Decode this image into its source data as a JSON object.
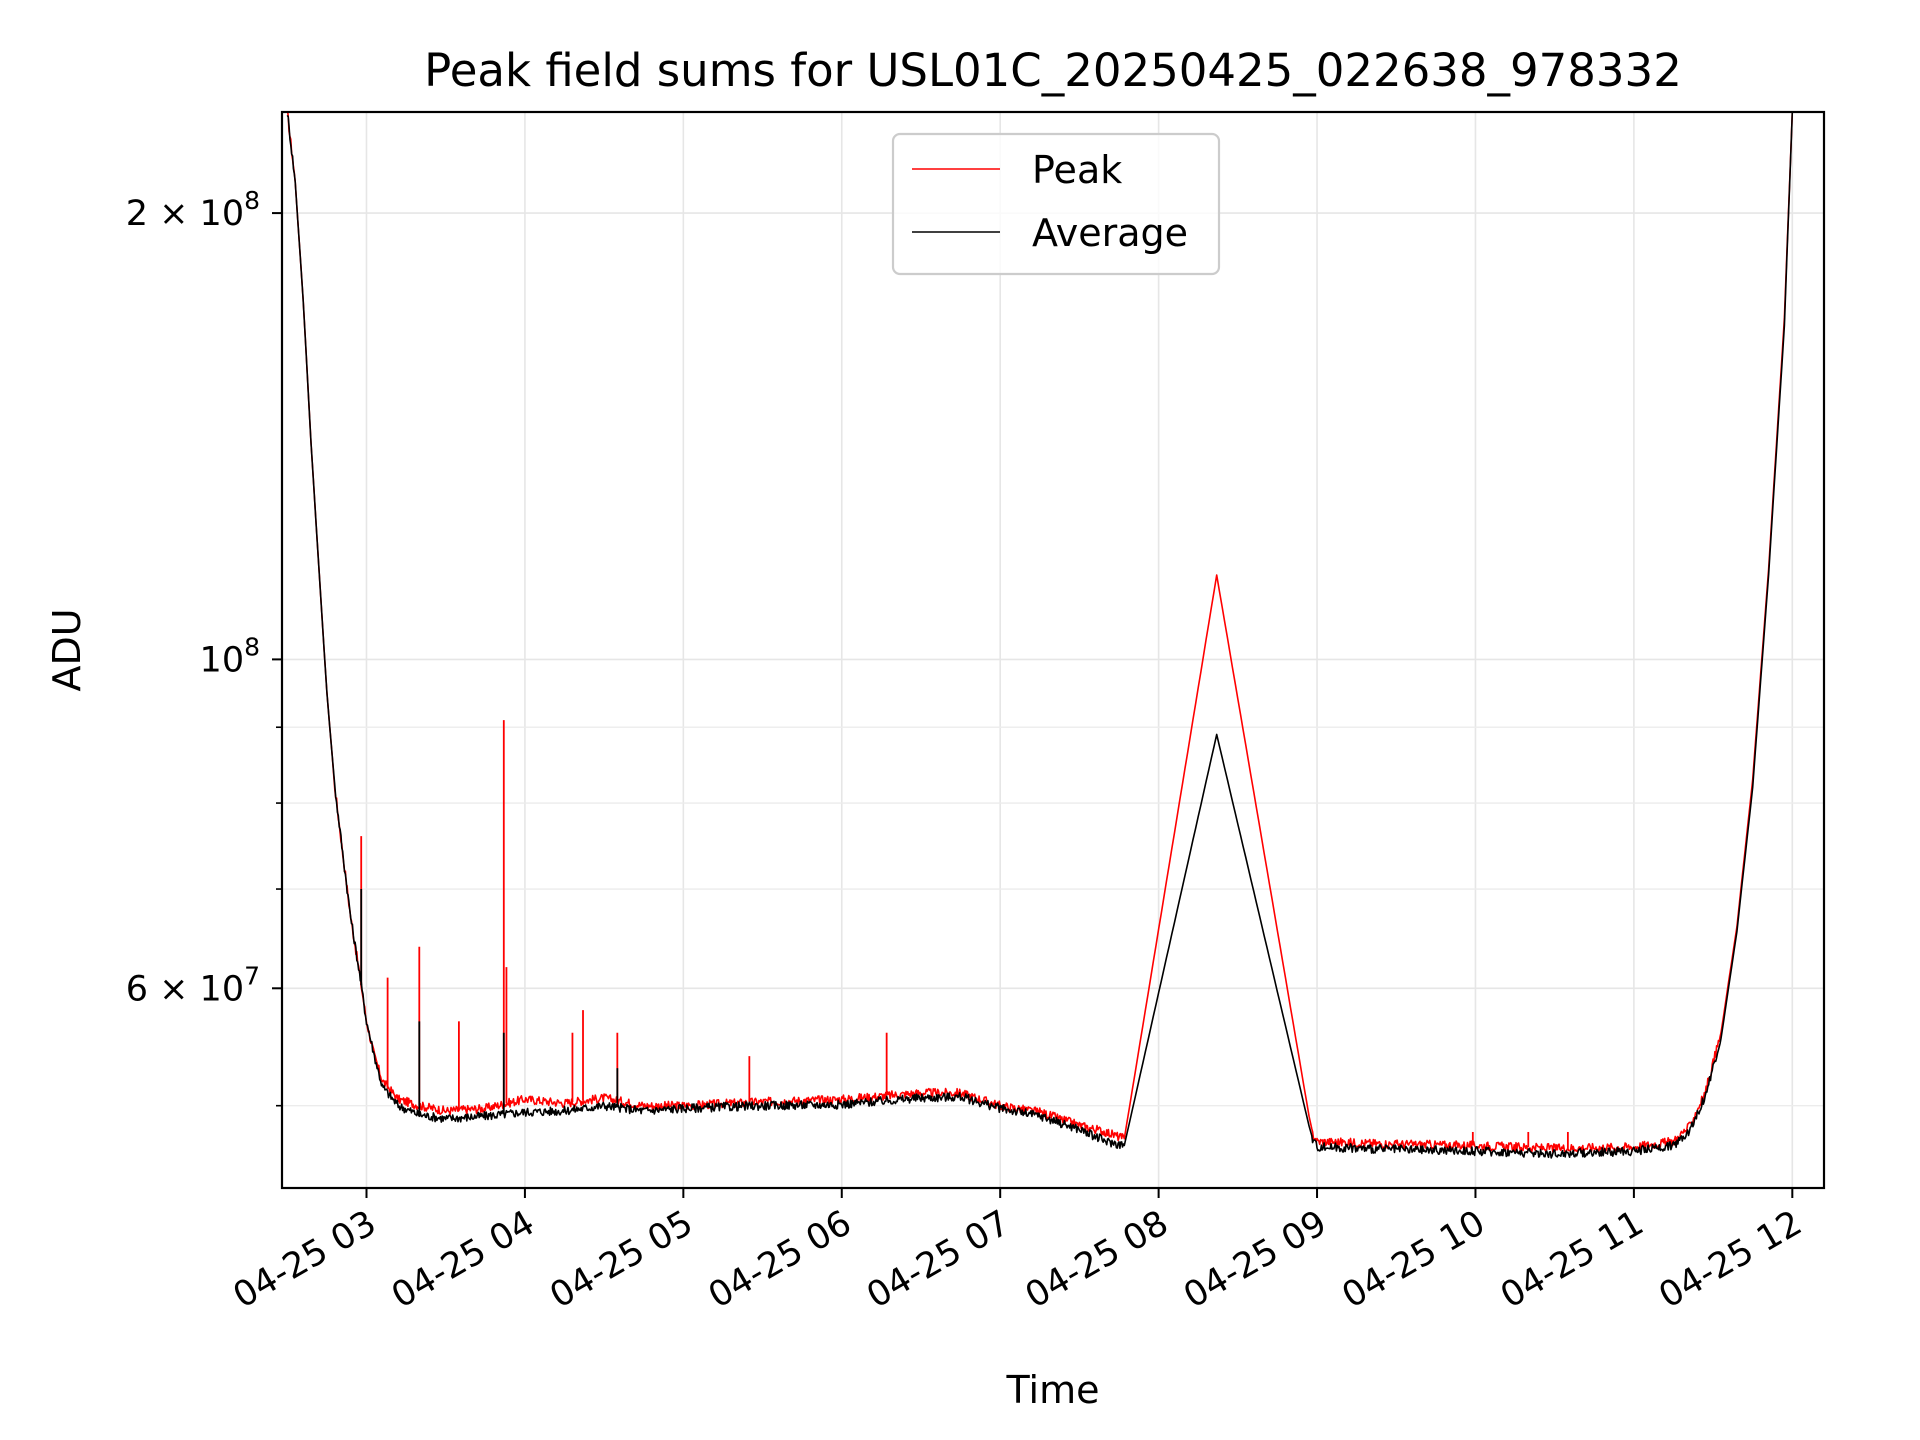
{
  "chart_data": {
    "type": "line",
    "title": "Peak field sums for USL01C_20250425_022638_978332",
    "xlabel": "Time",
    "ylabel": "ADU",
    "y_scale": "log",
    "xlim": [
      "04-25 02:28",
      "04-25 12:12"
    ],
    "ylim": [
      44000000,
      234000000
    ],
    "x_ticks": [
      "04-25 03",
      "04-25 04",
      "04-25 05",
      "04-25 06",
      "04-25 07",
      "04-25 08",
      "04-25 09",
      "04-25 10",
      "04-25 11",
      "04-25 12"
    ],
    "y_ticks": [
      {
        "value": 60000000,
        "mantissa": "6 × 10",
        "exp": "7"
      },
      {
        "value": 100000000,
        "mantissa": "10",
        "exp": "8"
      },
      {
        "value": 200000000,
        "mantissa": "2 × 10",
        "exp": "8"
      }
    ],
    "y_minor_ticks": [
      50000000,
      70000000,
      80000000,
      90000000
    ],
    "grid": true,
    "legend": "upper-center",
    "series": [
      {
        "name": "Peak",
        "color": "#ff0000",
        "x": [
          "04-25 02:30",
          "04-25 02:33",
          "04-25 02:36",
          "04-25 02:39",
          "04-25 02:42",
          "04-25 02:45",
          "04-25 02:48",
          "04-25 02:51",
          "04-25 02:54",
          "04-25 02:57",
          "04-25 03:00",
          "04-25 03:03",
          "04-25 03:06",
          "04-25 03:12",
          "04-25 03:20",
          "04-25 03:30",
          "04-25 03:45",
          "04-25 04:00",
          "04-25 04:15",
          "04-25 04:30",
          "04-25 04:45",
          "04-25 05:00",
          "04-25 05:30",
          "04-25 06:00",
          "04-25 06:30",
          "04-25 06:45",
          "04-25 07:00",
          "04-25 07:15",
          "04-25 07:30",
          "04-25 07:40",
          "04-25 07:47",
          "04-25 08:22",
          "04-25 08:58",
          "04-25 09:00",
          "04-25 09:30",
          "04-25 10:00",
          "04-25 10:30",
          "04-25 11:00",
          "04-25 11:15",
          "04-25 11:21",
          "04-25 11:27",
          "04-25 11:33",
          "04-25 11:39",
          "04-25 11:45",
          "04-25 11:51",
          "04-25 11:57",
          "04-25 12:00"
        ],
        "y": [
          234000000,
          210000000,
          175000000,
          140000000,
          115000000,
          95000000,
          82000000,
          74000000,
          67000000,
          62000000,
          57000000,
          54000000,
          52000000,
          50500000,
          50000000,
          49600000,
          49800000,
          50500000,
          50200000,
          50600000,
          50000000,
          50000000,
          50300000,
          50500000,
          51000000,
          51000000,
          50000000,
          49500000,
          48500000,
          48000000,
          47500000,
          114000000,
          48000000,
          47300000,
          47100000,
          47000000,
          46800000,
          46900000,
          47300000,
          48400000,
          51000000,
          56000000,
          66000000,
          83000000,
          115000000,
          170000000,
          234000000
        ],
        "spikes": [
          {
            "x": "04-25 02:58",
            "y": 76000000
          },
          {
            "x": "04-25 03:08",
            "y": 61000000
          },
          {
            "x": "04-25 03:20",
            "y": 64000000
          },
          {
            "x": "04-25 03:35",
            "y": 57000000
          },
          {
            "x": "04-25 03:52",
            "y": 91000000
          },
          {
            "x": "04-25 03:53",
            "y": 62000000
          },
          {
            "x": "04-25 04:18",
            "y": 56000000
          },
          {
            "x": "04-25 04:22",
            "y": 58000000
          },
          {
            "x": "04-25 04:35",
            "y": 56000000
          },
          {
            "x": "04-25 05:25",
            "y": 54000000
          },
          {
            "x": "04-25 06:17",
            "y": 56000000
          },
          {
            "x": "04-25 09:59",
            "y": 48000000
          },
          {
            "x": "04-25 10:20",
            "y": 48000000
          },
          {
            "x": "04-25 10:35",
            "y": 48000000
          }
        ]
      },
      {
        "name": "Average",
        "color": "#000000",
        "x": [
          "04-25 02:30",
          "04-25 02:33",
          "04-25 02:36",
          "04-25 02:39",
          "04-25 02:42",
          "04-25 02:45",
          "04-25 02:48",
          "04-25 02:51",
          "04-25 02:54",
          "04-25 02:57",
          "04-25 03:00",
          "04-25 03:03",
          "04-25 03:06",
          "04-25 03:12",
          "04-25 03:20",
          "04-25 03:30",
          "04-25 03:45",
          "04-25 04:00",
          "04-25 04:15",
          "04-25 04:30",
          "04-25 04:45",
          "04-25 05:00",
          "04-25 05:30",
          "04-25 06:00",
          "04-25 06:30",
          "04-25 06:45",
          "04-25 07:00",
          "04-25 07:15",
          "04-25 07:30",
          "04-25 07:40",
          "04-25 07:47",
          "04-25 08:22",
          "04-25 08:58",
          "04-25 09:00",
          "04-25 09:30",
          "04-25 10:00",
          "04-25 10:30",
          "04-25 11:00",
          "04-25 11:15",
          "04-25 11:21",
          "04-25 11:27",
          "04-25 11:33",
          "04-25 11:39",
          "04-25 11:45",
          "04-25 11:51",
          "04-25 11:57",
          "04-25 12:00"
        ],
        "y": [
          234000000,
          210000000,
          175000000,
          140000000,
          115000000,
          95000000,
          82000000,
          74000000,
          67000000,
          62000000,
          57000000,
          54000000,
          51500000,
          50000000,
          49300000,
          49000000,
          49200000,
          49500000,
          49600000,
          50000000,
          49600000,
          49800000,
          50000000,
          50100000,
          50600000,
          50700000,
          49800000,
          49200000,
          48200000,
          47300000,
          47000000,
          89000000,
          47600000,
          46900000,
          46700000,
          46600000,
          46400000,
          46600000,
          47000000,
          48100000,
          50700000,
          55500000,
          65500000,
          82000000,
          114000000,
          168000000,
          234000000
        ],
        "spikes": [
          {
            "x": "04-25 02:58",
            "y": 70000000
          },
          {
            "x": "04-25 03:20",
            "y": 57000000
          },
          {
            "x": "04-25 03:52",
            "y": 56000000
          },
          {
            "x": "04-25 04:35",
            "y": 53000000
          }
        ]
      }
    ]
  }
}
